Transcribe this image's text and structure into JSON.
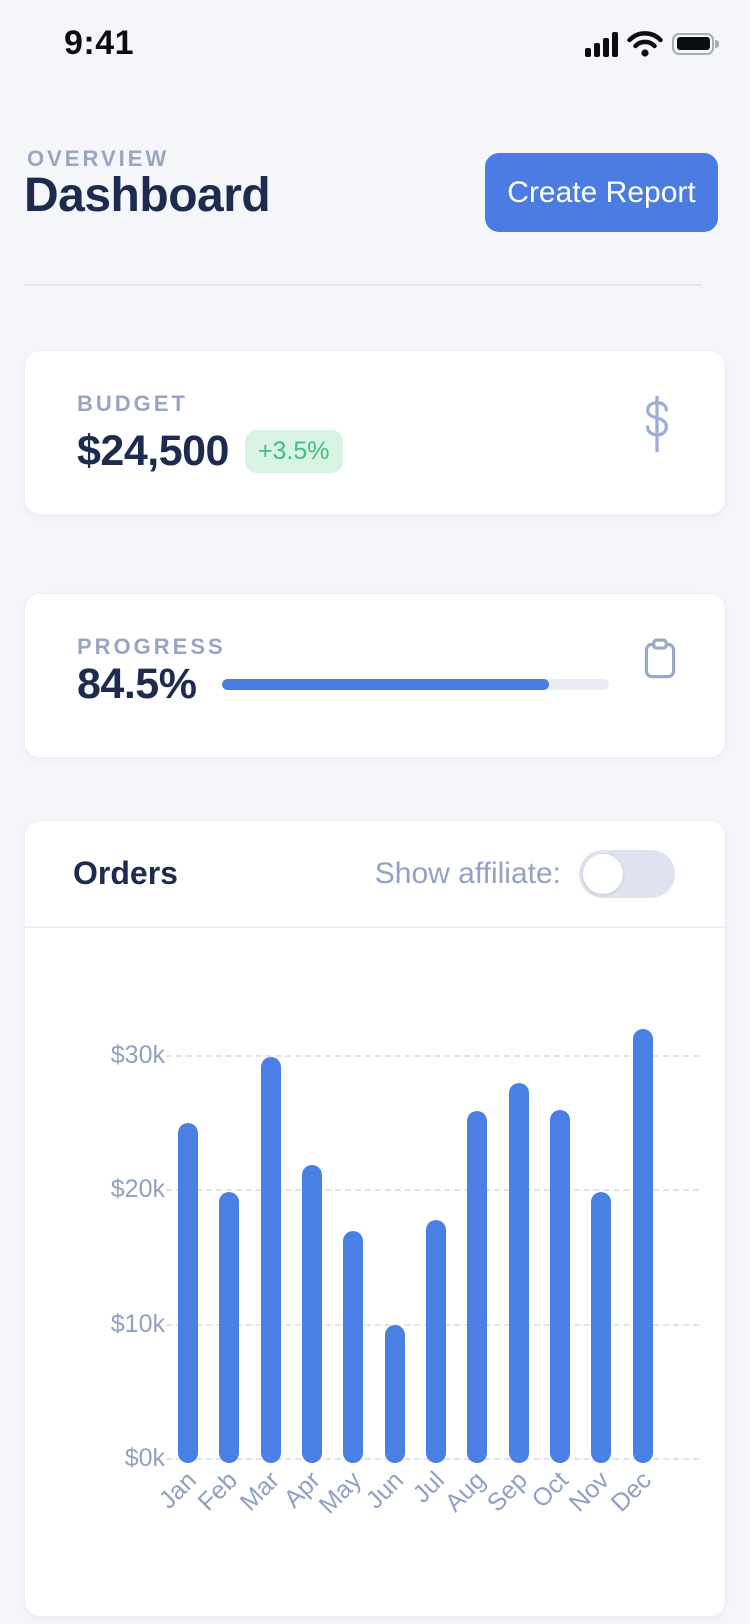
{
  "status_bar": {
    "time": "9:41",
    "icons": [
      "cellular-signal",
      "wifi",
      "battery-full"
    ]
  },
  "header": {
    "eyebrow": "OVERVIEW",
    "title": "Dashboard",
    "button_label": "Create Report"
  },
  "budget_card": {
    "label": "BUDGET",
    "value": "$24,500",
    "delta": "+3.5%",
    "icon": "dollar-sign",
    "delta_color": "#43bd87",
    "delta_bg": "#d8f2e3"
  },
  "progress_card": {
    "label": "PROGRESS",
    "value": "84.5%",
    "percent": 84.5,
    "icon": "clipboard"
  },
  "orders_card": {
    "title": "Orders",
    "toggle_label": "Show affiliate:",
    "toggle_state": "off"
  },
  "chart_data": {
    "type": "bar",
    "title": "Orders",
    "categories": [
      "Jan",
      "Feb",
      "Mar",
      "Apr",
      "May",
      "Jun",
      "Jul",
      "Aug",
      "Sep",
      "Oct",
      "Nov",
      "Dec"
    ],
    "values": [
      24.9,
      19.8,
      29.8,
      21.8,
      16.9,
      9.9,
      17.7,
      25.8,
      27.9,
      25.9,
      19.8,
      31.9
    ],
    "unit": "thousand USD",
    "yticks": [
      0,
      10,
      20,
      30
    ],
    "ytick_labels": [
      "$0k",
      "$10k",
      "$20k",
      "$30k"
    ],
    "ylim": [
      0,
      33
    ],
    "grid": "horizontal-dashed",
    "legend": "none",
    "bar_color": "#4a80e4"
  },
  "colors": {
    "background": "#f5f6f9",
    "card": "#ffffff",
    "accent_blue": "#4a7ce1",
    "bar_blue": "#4a80e4",
    "navy_text": "#1c2b4e",
    "muted_label": "#99a5c1",
    "green_text": "#43bd87",
    "green_bg": "#d8f2e3"
  }
}
